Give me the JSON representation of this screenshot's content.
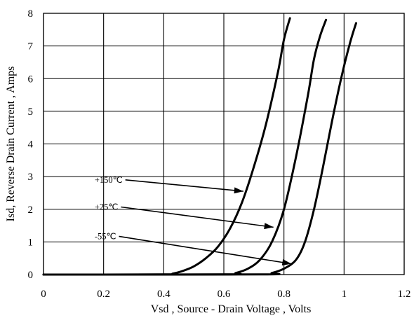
{
  "chart_data": {
    "type": "line",
    "xlabel": "Vsd , Source - Drain Voltage , Volts",
    "ylabel": "Isd, Reverse Drain Current , Amps",
    "xlim": [
      0,
      1.2
    ],
    "ylim": [
      0,
      8
    ],
    "xticks": [
      "0",
      "0.2",
      "0.4",
      "0.6",
      "0.8",
      "1",
      "1.2"
    ],
    "yticks": [
      "0",
      "1",
      "2",
      "3",
      "4",
      "5",
      "6",
      "7",
      "8"
    ],
    "grid": true,
    "series": [
      {
        "name": "+150℃",
        "x": [
          0,
          0.4,
          0.43,
          0.46,
          0.5,
          0.54,
          0.58,
          0.62,
          0.66,
          0.7,
          0.74,
          0.78,
          0.8,
          0.82
        ],
        "y": [
          0,
          0.005,
          0.03,
          0.1,
          0.25,
          0.5,
          0.85,
          1.4,
          2.2,
          3.3,
          4.6,
          6.2,
          7.2,
          7.85
        ]
      },
      {
        "name": "+25℃",
        "x": [
          0,
          0.6,
          0.64,
          0.68,
          0.72,
          0.76,
          0.8,
          0.84,
          0.88,
          0.9,
          0.92,
          0.94
        ],
        "y": [
          0,
          0.005,
          0.05,
          0.18,
          0.45,
          1.0,
          2.0,
          3.6,
          5.5,
          6.6,
          7.3,
          7.8
        ]
      },
      {
        "name": "-55℃",
        "x": [
          0,
          0.72,
          0.76,
          0.8,
          0.84,
          0.87,
          0.9,
          0.93,
          0.96,
          0.99,
          1.02,
          1.04
        ],
        "y": [
          0,
          0.005,
          0.05,
          0.18,
          0.45,
          1.0,
          2.0,
          3.3,
          4.7,
          6.0,
          7.1,
          7.7
        ]
      }
    ],
    "annotations": [
      {
        "text": "+150℃",
        "label_at": [
          0.17,
          2.9
        ],
        "arrow_to": [
          0.665,
          2.55
        ]
      },
      {
        "text": "+25℃",
        "label_at": [
          0.17,
          2.07
        ],
        "arrow_to": [
          0.765,
          1.45
        ]
      },
      {
        "text": "-55℃",
        "label_at": [
          0.17,
          1.17
        ],
        "arrow_to": [
          0.825,
          0.33
        ]
      }
    ]
  }
}
